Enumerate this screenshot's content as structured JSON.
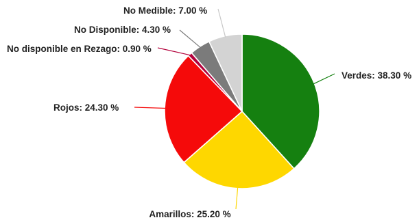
{
  "chart_data": {
    "type": "pie",
    "slices": [
      {
        "label": "Verdes: 38.30 %",
        "value": 38.3,
        "color": "#158010"
      },
      {
        "label": "Amarillos: 25.20 %",
        "value": 25.2,
        "color": "#fed700"
      },
      {
        "label": "Rojos: 24.30 %",
        "value": 24.3,
        "color": "#f50a0a"
      },
      {
        "label": "No disponible en Rezago: 0.90 %",
        "value": 0.9,
        "color": "#b3003b"
      },
      {
        "label": "No Disponible: 4.30 %",
        "value": 4.3,
        "color": "#7b7b7b"
      },
      {
        "label": "No Medible: 7.00 %",
        "value": 7.0,
        "color": "#d3d3d3"
      }
    ],
    "start_angle": "12 o'clock",
    "direction": "clockwise",
    "legend": "none",
    "title": ""
  }
}
